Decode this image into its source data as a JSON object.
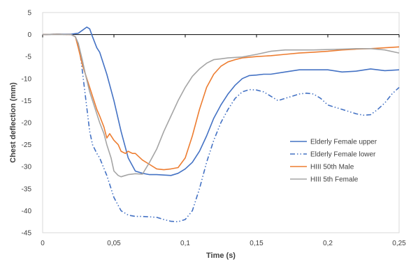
{
  "chart_data": {
    "type": "line",
    "title": "",
    "xlabel": "Time (s)",
    "ylabel": "Chest deflection (mm)",
    "xlim": [
      0,
      0.25
    ],
    "ylim": [
      -45,
      5
    ],
    "x_ticks": [
      0,
      0.05,
      0.1,
      0.15,
      0.2,
      0.25
    ],
    "x_tick_labels": [
      "0",
      "0,05",
      "0,1",
      "0,15",
      "0,2",
      "0,25"
    ],
    "y_ticks": [
      5,
      0,
      -5,
      -10,
      -15,
      -20,
      -25,
      -30,
      -35,
      -40,
      -45
    ],
    "y_tick_labels": [
      "5",
      "0",
      "-5",
      "-10",
      "-15",
      "-20",
      "-25",
      "-30",
      "-35",
      "-40",
      "-45"
    ],
    "grid": false,
    "legend_position": "right",
    "series": [
      {
        "name": "Elderly Female upper",
        "color": "#4472C4",
        "dash": "solid",
        "x": [
          0,
          0.01,
          0.02,
          0.025,
          0.028,
          0.031,
          0.033,
          0.035,
          0.038,
          0.04,
          0.045,
          0.05,
          0.055,
          0.06,
          0.065,
          0.07,
          0.075,
          0.08,
          0.085,
          0.09,
          0.095,
          0.1,
          0.105,
          0.11,
          0.115,
          0.12,
          0.125,
          0.13,
          0.135,
          0.14,
          0.145,
          0.15,
          0.155,
          0.16,
          0.17,
          0.18,
          0.19,
          0.2,
          0.21,
          0.22,
          0.23,
          0.24,
          0.25
        ],
        "y": [
          0,
          0.1,
          0.1,
          0.3,
          1,
          1.7,
          1.3,
          -0.5,
          -3,
          -4,
          -9,
          -15,
          -22,
          -28,
          -31,
          -31.5,
          -31.8,
          -31.8,
          -31.9,
          -32,
          -31.5,
          -30.5,
          -29,
          -26.5,
          -23,
          -19,
          -16,
          -13.5,
          -11.5,
          -10,
          -9.3,
          -9.2,
          -9,
          -9,
          -8.5,
          -8,
          -8,
          -8,
          -8.5,
          -8.3,
          -7.8,
          -8.2,
          -8
        ]
      },
      {
        "name": "Elderly Female lower",
        "color": "#4472C4",
        "dash": "dash-dot-dot",
        "x": [
          0,
          0.01,
          0.02,
          0.023,
          0.025,
          0.027,
          0.03,
          0.033,
          0.035,
          0.038,
          0.04,
          0.045,
          0.05,
          0.055,
          0.06,
          0.065,
          0.07,
          0.075,
          0.08,
          0.085,
          0.09,
          0.095,
          0.1,
          0.105,
          0.11,
          0.115,
          0.12,
          0.125,
          0.13,
          0.135,
          0.14,
          0.145,
          0.15,
          0.155,
          0.16,
          0.165,
          0.17,
          0.175,
          0.18,
          0.185,
          0.19,
          0.195,
          0.2,
          0.205,
          0.21,
          0.215,
          0.22,
          0.225,
          0.23,
          0.235,
          0.24,
          0.245,
          0.25
        ],
        "y": [
          0,
          0.1,
          0,
          -0.5,
          -2,
          -6,
          -14,
          -22,
          -25,
          -27,
          -28,
          -32,
          -37,
          -40,
          -41,
          -41.3,
          -41.3,
          -41.4,
          -41.5,
          -42,
          -42.4,
          -42.5,
          -42,
          -40,
          -35,
          -29,
          -24,
          -20,
          -17,
          -14.5,
          -13,
          -12.5,
          -12.6,
          -13,
          -14,
          -15,
          -14.5,
          -14,
          -13.5,
          -13.3,
          -13.5,
          -14.5,
          -16,
          -16.5,
          -17,
          -17.5,
          -18,
          -18.3,
          -18.2,
          -17,
          -15.5,
          -13.5,
          -12
        ]
      },
      {
        "name": "HIII 50th Male",
        "color": "#ED7D31",
        "dash": "solid",
        "x": [
          0,
          0.01,
          0.02,
          0.023,
          0.025,
          0.028,
          0.03,
          0.033,
          0.035,
          0.038,
          0.04,
          0.043,
          0.045,
          0.047,
          0.05,
          0.053,
          0.055,
          0.058,
          0.06,
          0.063,
          0.065,
          0.07,
          0.075,
          0.08,
          0.085,
          0.09,
          0.095,
          0.1,
          0.105,
          0.11,
          0.115,
          0.12,
          0.125,
          0.13,
          0.135,
          0.14,
          0.15,
          0.16,
          0.17,
          0.18,
          0.19,
          0.2,
          0.21,
          0.22,
          0.23,
          0.24,
          0.25
        ],
        "y": [
          0,
          0.1,
          0,
          -0.5,
          -3,
          -7,
          -9,
          -12,
          -14,
          -17,
          -18.5,
          -21,
          -23.5,
          -22.5,
          -24,
          -25,
          -26.5,
          -27,
          -26.5,
          -27,
          -27,
          -28.5,
          -29.5,
          -30.5,
          -30.7,
          -30.5,
          -30.2,
          -28,
          -23,
          -17,
          -12,
          -9,
          -7.2,
          -6.2,
          -5.7,
          -5.3,
          -5,
          -4.8,
          -4.5,
          -4.2,
          -4,
          -3.8,
          -3.5,
          -3.3,
          -3.2,
          -3,
          -2.8
        ]
      },
      {
        "name": "HIII 5th Female",
        "color": "#A5A5A5",
        "dash": "solid",
        "x": [
          0,
          0.01,
          0.02,
          0.023,
          0.025,
          0.028,
          0.03,
          0.033,
          0.035,
          0.038,
          0.04,
          0.043,
          0.045,
          0.048,
          0.05,
          0.053,
          0.055,
          0.058,
          0.06,
          0.065,
          0.07,
          0.075,
          0.08,
          0.085,
          0.09,
          0.095,
          0.1,
          0.105,
          0.11,
          0.115,
          0.12,
          0.125,
          0.13,
          0.14,
          0.15,
          0.16,
          0.17,
          0.18,
          0.19,
          0.2,
          0.21,
          0.22,
          0.23,
          0.24,
          0.25
        ],
        "y": [
          0,
          0.1,
          0,
          -0.5,
          -2,
          -6,
          -9,
          -13,
          -15,
          -18,
          -20,
          -22.5,
          -25,
          -28,
          -31,
          -32,
          -32.3,
          -32,
          -31.8,
          -31.6,
          -31.7,
          -29,
          -26,
          -22,
          -18.5,
          -15,
          -12,
          -9.5,
          -7.8,
          -6.5,
          -5.7,
          -5.5,
          -5.3,
          -5.1,
          -4.5,
          -3.8,
          -3.5,
          -3.5,
          -3.5,
          -3.4,
          -3.3,
          -3.2,
          -3.2,
          -3.5,
          -4.2
        ]
      }
    ]
  }
}
